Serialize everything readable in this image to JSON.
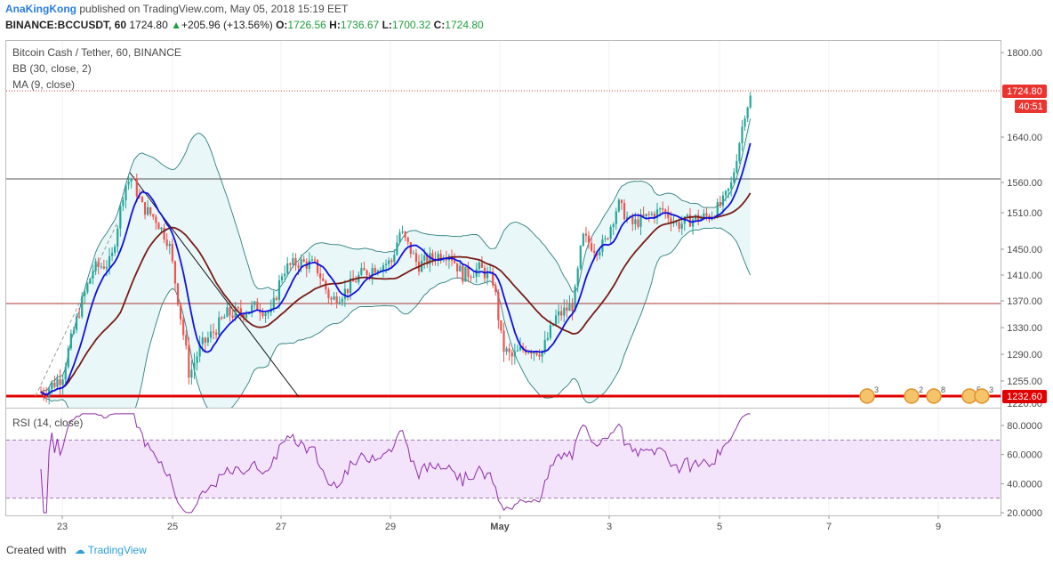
{
  "header": {
    "author": "AnaKingKong",
    "published_text": "published on TradingView.com, May 05, 2018 15:19 EET",
    "symbol": "BINANCE:BCCUSDT, 60",
    "last": "1724.80",
    "change": "+205.96 (+13.56%)",
    "o_label": "O:",
    "o_value": "1726.56",
    "h_label": "H:",
    "h_value": "1736.67",
    "l_label": "L:",
    "l_value": "1700.32",
    "c_label": "C:",
    "c_value": "1724.80"
  },
  "legend": {
    "title": "Bitcoin Cash / Tether, 60, BINANCE",
    "bb": "BB (30, close, 2)",
    "ma": "MA (9, close)",
    "rsi": "RSI (14, close)"
  },
  "price_axis": {
    "ticks": [
      "1800.00",
      "1640.00",
      "1560.00",
      "1510.00",
      "1450.00",
      "1410.00",
      "1370.00",
      "1330.00",
      "1290.00",
      "1255.00"
    ],
    "partial_tick": "1220.00",
    "last_price_label": "1724.80",
    "countdown_label": "40:51",
    "support_label": "1232.60"
  },
  "rsi_axis": {
    "ticks": [
      "80.0000",
      "60.0000",
      "40.0000",
      "20.0000"
    ]
  },
  "time_axis": {
    "labels": [
      "23",
      "25",
      "27",
      "29",
      "May",
      "3",
      "5",
      "7",
      "9"
    ]
  },
  "event_markers": [
    "3",
    "2",
    "8",
    "5",
    "3"
  ],
  "colors": {
    "up": "#26a69a",
    "down": "#ef5350",
    "ma": "#1010e0",
    "bb_basis": "#7a1c16",
    "bb_band": "#2f7f7f",
    "bb_fill": "#e9f7f8",
    "rsi_line": "#8e2ea8",
    "rsi_band": "#f3e3fb",
    "support_line": "#e00000",
    "resistance_line": "#555555"
  },
  "chart_data": {
    "type": "candlestick",
    "title": "Bitcoin Cash / Tether, 60, BINANCE",
    "x_labels": [
      "23",
      "25",
      "27",
      "29",
      "May",
      "3",
      "5",
      "7",
      "9"
    ],
    "ylim_price": [
      1220,
      1800
    ],
    "price_key_points": [
      {
        "x_label_near": "23",
        "close": 1240
      },
      {
        "x_label_near": "24",
        "close": 1565
      },
      {
        "x_label_near": "25",
        "close": 1460
      },
      {
        "x_label_near": "25",
        "close": 1255
      },
      {
        "x_label_near": "27",
        "close": 1330
      },
      {
        "x_label_near": "27",
        "close": 1410
      },
      {
        "x_label_near": "28",
        "close": 1380
      },
      {
        "x_label_near": "29",
        "close": 1460
      },
      {
        "x_label_near": "30",
        "close": 1420
      },
      {
        "x_label_near": "May",
        "close": 1280
      },
      {
        "x_label_near": "May",
        "close": 1305
      },
      {
        "x_label_near": "2",
        "close": 1370
      },
      {
        "x_label_near": "3",
        "close": 1500
      },
      {
        "x_label_near": "4",
        "close": 1495
      },
      {
        "x_label_near": "5",
        "close": 1560
      },
      {
        "x_label_near": "5",
        "close": 1724.8
      }
    ],
    "horizontal_lines": [
      1562,
      1365,
      1232.6,
      1724.8
    ],
    "indicators": [
      "BB (30, close, 2)",
      "MA (9, close)",
      "RSI (14, close)"
    ],
    "rsi_levels": [
      70,
      30
    ],
    "rsi_ylim": [
      18,
      88
    ]
  }
}
